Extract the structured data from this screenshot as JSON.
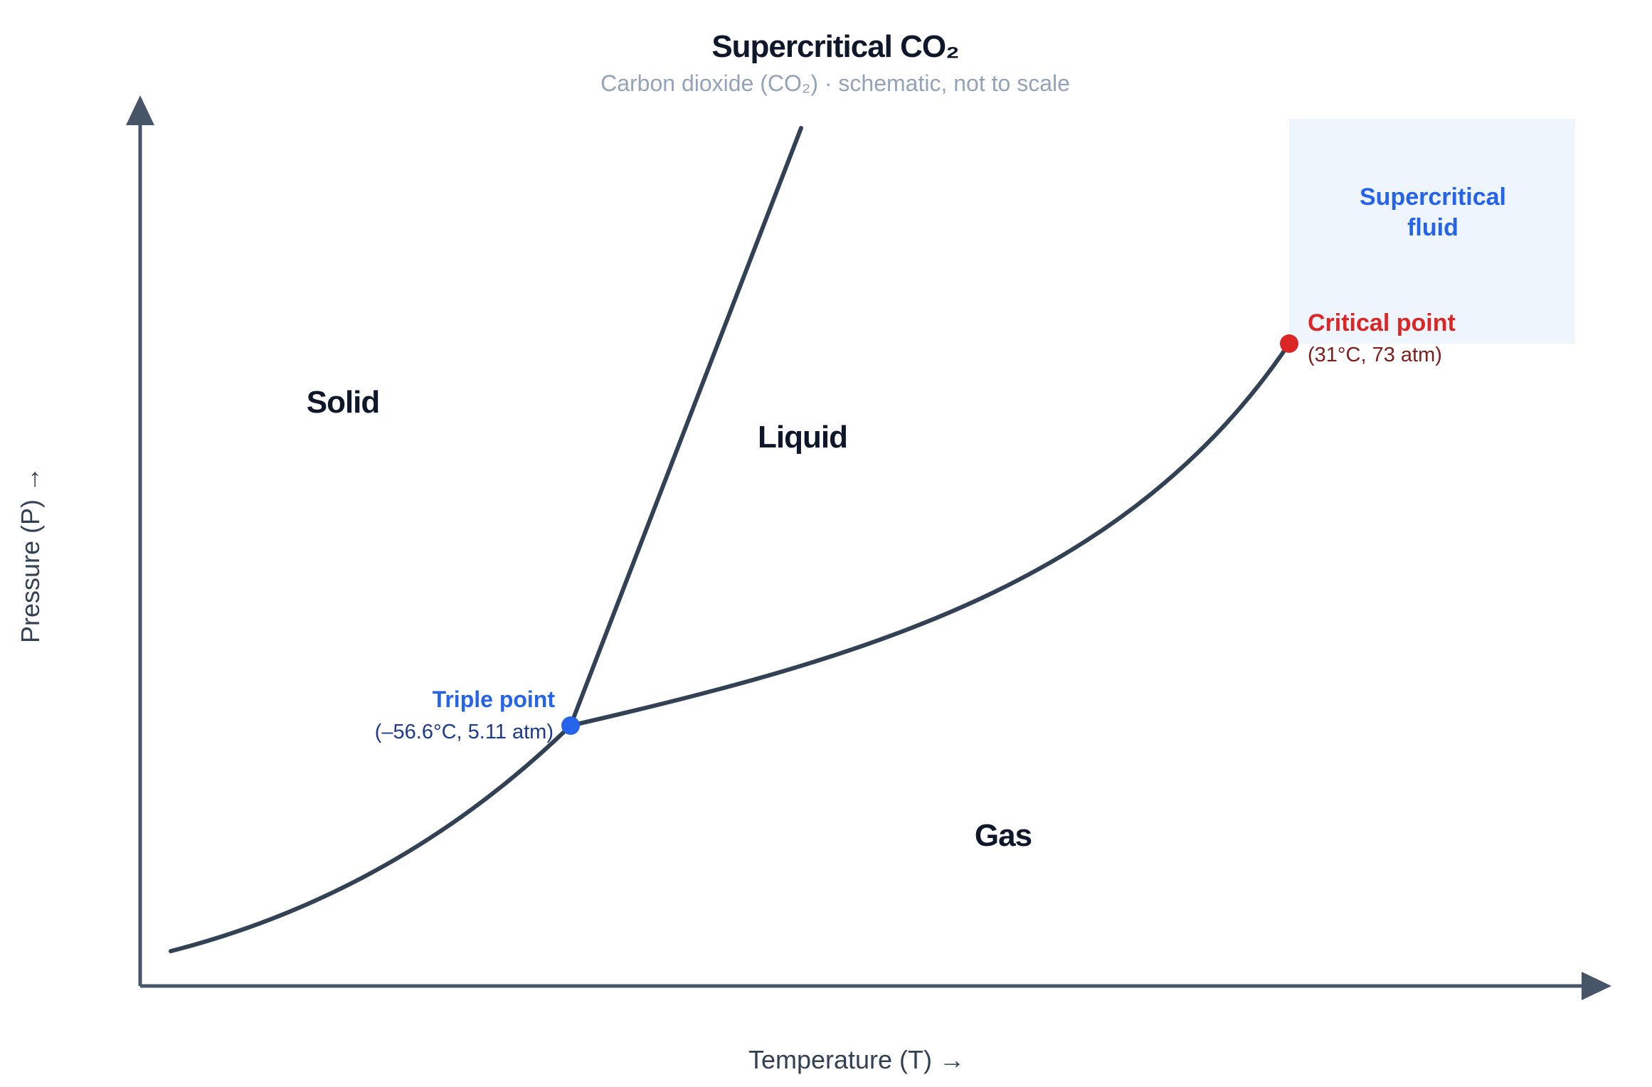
{
  "title": "Supercritical CO₂",
  "subtitle": "Carbon dioxide (CO₂) · schematic, not to scale",
  "axes": {
    "x_label": "Temperature (T) →",
    "y_label": "Pressure (P) →"
  },
  "regions": {
    "solid": "Solid",
    "liquid": "Liquid",
    "gas": "Gas",
    "supercritical_line1": "Supercritical",
    "supercritical_line2": "fluid"
  },
  "triple_point": {
    "name": "Triple point",
    "coords": "(–56.6°C, 5.11 atm)",
    "color": "#2563eb"
  },
  "critical_point": {
    "name": "Critical point",
    "coords": "(31°C, 73 atm)",
    "color": "#dc2626"
  },
  "colors": {
    "curve": "#334155",
    "axis": "#475569",
    "supercritical_region": "#eef5fd"
  }
}
